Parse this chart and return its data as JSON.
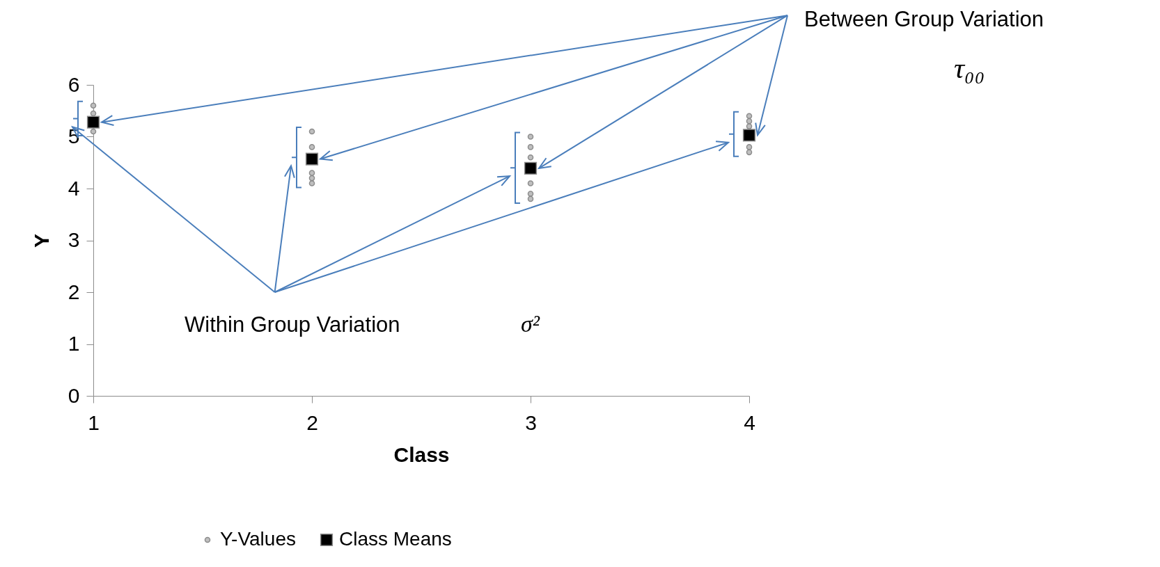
{
  "chart_data": {
    "type": "scatter",
    "xlabel": "Class",
    "ylabel": "Y",
    "xlim": [
      1,
      4
    ],
    "xticks": [
      1,
      2,
      3,
      4
    ],
    "ylim": [
      0,
      6
    ],
    "yticks": [
      0,
      1,
      2,
      3,
      4,
      5,
      6
    ],
    "grid": false,
    "legend": "bottom",
    "annotations": [
      "Between Group Variation",
      "τ₀₀",
      "Within Group Variation",
      "σ²"
    ],
    "series": [
      {
        "name": "Y-Values",
        "color": "#bfbfbf",
        "marker": "circle",
        "x": [
          1,
          1,
          1,
          2,
          2,
          2,
          2,
          2,
          3,
          3,
          3,
          3,
          3,
          3,
          4,
          4,
          4,
          4,
          4
        ],
        "values": [
          5.6,
          5.45,
          5.1,
          5.1,
          4.8,
          4.3,
          4.2,
          4.1,
          5.0,
          4.8,
          4.6,
          4.1,
          3.9,
          3.8,
          5.4,
          5.3,
          5.2,
          4.8,
          4.7
        ]
      },
      {
        "name": "Class Means",
        "color": "#000000",
        "marker": "square",
        "x": [
          1,
          2,
          3,
          4
        ],
        "values": [
          5.28,
          4.57,
          4.39,
          5.03
        ]
      }
    ]
  }
}
